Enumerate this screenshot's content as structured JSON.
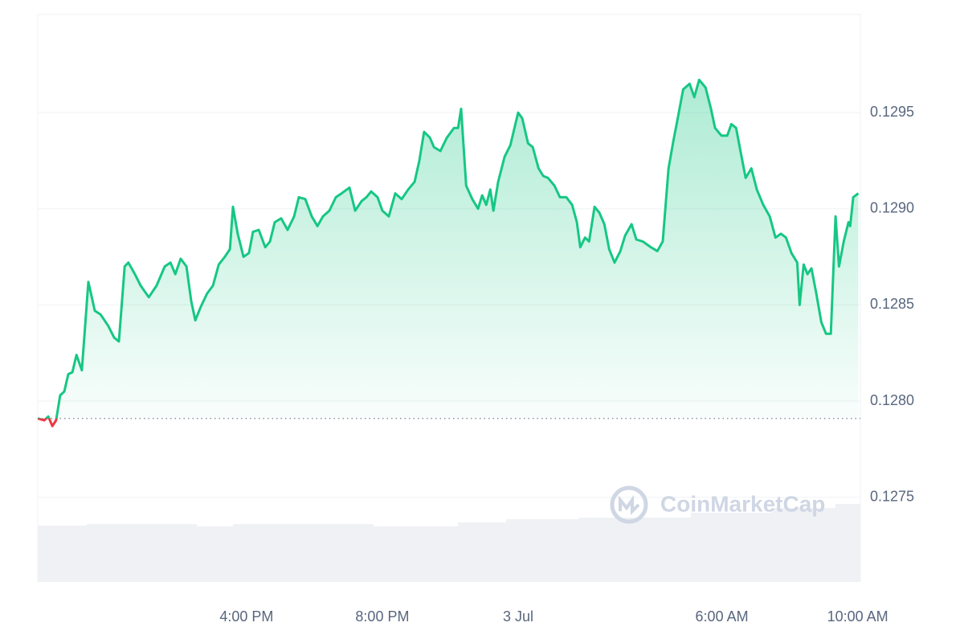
{
  "chart_data": {
    "type": "line",
    "watermark": "CoinMarketCap",
    "reference": 0.12791,
    "xlim": [
      9.85,
      34.08
    ],
    "ylim": [
      0.12706,
      0.13001
    ],
    "xticks": [
      {
        "value": 16,
        "label": "4:00 PM"
      },
      {
        "value": 20,
        "label": "8:00 PM"
      },
      {
        "value": 24,
        "label": "3 Jul"
      },
      {
        "value": 30,
        "label": "6:00 AM"
      },
      {
        "value": 34,
        "label": "10:00 AM"
      }
    ],
    "yticks": [
      0.1275,
      {
        "value": 0.128,
        "label": "0.1280"
      },
      0.1285,
      {
        "value": 0.129,
        "label": "0.1290"
      },
      0.1295
    ],
    "grid": true,
    "up_color": "#16c784",
    "down_color": "#ea3943",
    "x": [
      9.85,
      10.04,
      10.16,
      10.28,
      10.39,
      10.51,
      10.63,
      10.75,
      10.87,
      10.99,
      11.15,
      11.34,
      11.53,
      11.7,
      11.93,
      12.1,
      12.24,
      12.41,
      12.52,
      12.71,
      12.88,
      13.12,
      13.35,
      13.59,
      13.76,
      13.9,
      14.06,
      14.23,
      14.37,
      14.49,
      14.65,
      14.84,
      15.01,
      15.18,
      15.36,
      15.51,
      15.6,
      15.74,
      15.91,
      16.07,
      16.19,
      16.36,
      16.55,
      16.69,
      16.83,
      17.02,
      17.21,
      17.4,
      17.54,
      17.73,
      17.92,
      18.09,
      18.25,
      18.44,
      18.63,
      18.8,
      19.03,
      19.2,
      19.39,
      19.53,
      19.67,
      19.86,
      20.0,
      20.19,
      20.38,
      20.57,
      20.76,
      20.95,
      21.09,
      21.23,
      21.4,
      21.52,
      21.71,
      21.9,
      22.11,
      22.23,
      22.32,
      22.47,
      22.65,
      22.82,
      22.94,
      23.06,
      23.18,
      23.27,
      23.41,
      23.6,
      23.77,
      23.89,
      24.0,
      24.12,
      24.29,
      24.43,
      24.6,
      24.74,
      24.88,
      25.07,
      25.23,
      25.42,
      25.59,
      25.73,
      25.83,
      25.97,
      26.09,
      26.25,
      26.39,
      26.54,
      26.68,
      26.84,
      27.01,
      27.15,
      27.34,
      27.48,
      27.67,
      27.91,
      28.1,
      28.26,
      28.43,
      28.57,
      28.69,
      28.86,
      29.05,
      29.19,
      29.33,
      29.52,
      29.68,
      29.8,
      29.99,
      30.16,
      30.28,
      30.42,
      30.56,
      30.7,
      30.87,
      31.03,
      31.22,
      31.41,
      31.58,
      31.74,
      31.89,
      32.05,
      32.22,
      32.29,
      32.41,
      32.52,
      32.64,
      32.78,
      32.93,
      33.07,
      33.21,
      33.35,
      33.45,
      33.59,
      33.73,
      33.78,
      33.87,
      34.02
    ],
    "values": [
      0.12791,
      0.1279,
      0.12792,
      0.12787,
      0.1279,
      0.12803,
      0.12805,
      0.12814,
      0.12815,
      0.12824,
      0.12816,
      0.12862,
      0.12847,
      0.12845,
      0.12839,
      0.12833,
      0.12831,
      0.1287,
      0.12872,
      0.12866,
      0.1286,
      0.12854,
      0.1286,
      0.1287,
      0.12872,
      0.12866,
      0.12874,
      0.1287,
      0.12852,
      0.12842,
      0.12849,
      0.12856,
      0.1286,
      0.12871,
      0.12875,
      0.12879,
      0.12901,
      0.12887,
      0.12875,
      0.12877,
      0.12888,
      0.12889,
      0.1288,
      0.12883,
      0.12893,
      0.12895,
      0.12889,
      0.12896,
      0.12906,
      0.12905,
      0.12896,
      0.12891,
      0.12896,
      0.12899,
      0.12906,
      0.12908,
      0.12911,
      0.12899,
      0.12904,
      0.12906,
      0.12909,
      0.12906,
      0.12899,
      0.12896,
      0.12908,
      0.12905,
      0.1291,
      0.12914,
      0.12925,
      0.1294,
      0.12937,
      0.12932,
      0.1293,
      0.12937,
      0.12942,
      0.12942,
      0.12952,
      0.12912,
      0.12905,
      0.129,
      0.12907,
      0.12902,
      0.1291,
      0.12899,
      0.12914,
      0.12927,
      0.12933,
      0.12942,
      0.1295,
      0.12947,
      0.12934,
      0.12932,
      0.12921,
      0.12917,
      0.12916,
      0.12912,
      0.12906,
      0.12906,
      0.12902,
      0.12893,
      0.1288,
      0.12885,
      0.12883,
      0.12901,
      0.12898,
      0.12892,
      0.12879,
      0.12872,
      0.12878,
      0.12886,
      0.12892,
      0.12884,
      0.12883,
      0.1288,
      0.12878,
      0.12883,
      0.12921,
      0.12935,
      0.12946,
      0.12962,
      0.12965,
      0.12958,
      0.12967,
      0.12963,
      0.12952,
      0.12942,
      0.12938,
      0.12938,
      0.12944,
      0.12942,
      0.12929,
      0.12916,
      0.12921,
      0.1291,
      0.12902,
      0.12896,
      0.12885,
      0.12887,
      0.12885,
      0.12877,
      0.12872,
      0.1285,
      0.12871,
      0.12866,
      0.12869,
      0.12856,
      0.12841,
      0.12835,
      0.12835,
      0.12896,
      0.1287,
      0.12883,
      0.12893,
      0.12891,
      0.12906,
      0.12908
    ]
  }
}
